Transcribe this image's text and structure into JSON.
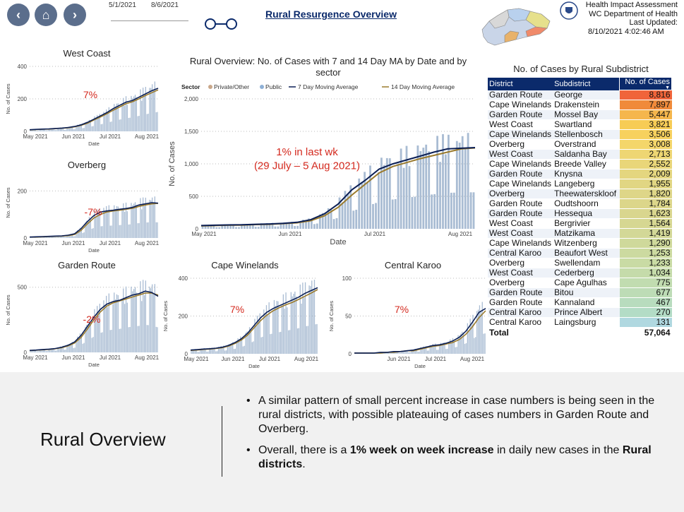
{
  "nav": {
    "back_icon": "‹",
    "home_icon": "⌂",
    "forward_icon": "›"
  },
  "date_filter": {
    "start": "5/1/2021",
    "end": "8/6/2021"
  },
  "main_title": "Rural Resurgence Overview",
  "header": {
    "org_line1": "Health Impact Assessment",
    "org_line2": "WC Department of Health",
    "org_line3": "Last Updated:",
    "updated": "8/10/2021 4:02:46 AM"
  },
  "table": {
    "title": "No. of Cases by Rural Subdistrict",
    "columns": [
      "District",
      "Subdistrict",
      "No. of Cases"
    ],
    "rows": [
      [
        "Garden Route",
        "George",
        "8,816"
      ],
      [
        "Cape Winelands",
        "Drakenstein",
        "7,897"
      ],
      [
        "Garden Route",
        "Mossel Bay",
        "5,447"
      ],
      [
        "West Coast",
        "Swartland",
        "3,821"
      ],
      [
        "Cape Winelands",
        "Stellenbosch",
        "3,506"
      ],
      [
        "Overberg",
        "Overstrand",
        "3,008"
      ],
      [
        "West Coast",
        "Saldanha Bay",
        "2,713"
      ],
      [
        "Cape Winelands",
        "Breede Valley",
        "2,552"
      ],
      [
        "Garden Route",
        "Knysna",
        "2,009"
      ],
      [
        "Cape Winelands",
        "Langeberg",
        "1,955"
      ],
      [
        "Overberg",
        "Theewaterskloof",
        "1,820"
      ],
      [
        "Garden Route",
        "Oudtshoorn",
        "1,784"
      ],
      [
        "Garden Route",
        "Hessequa",
        "1,623"
      ],
      [
        "West Coast",
        "Bergrivier",
        "1,564"
      ],
      [
        "West Coast",
        "Matzikama",
        "1,419"
      ],
      [
        "Cape Winelands",
        "Witzenberg",
        "1,290"
      ],
      [
        "Central Karoo",
        "Beaufort West",
        "1,253"
      ],
      [
        "Overberg",
        "Swellendam",
        "1,233"
      ],
      [
        "West Coast",
        "Cederberg",
        "1,034"
      ],
      [
        "Overberg",
        "Cape Agulhas",
        "775"
      ],
      [
        "Garden Route",
        "Bitou",
        "677"
      ],
      [
        "Garden Route",
        "Kannaland",
        "467"
      ],
      [
        "Central Karoo",
        "Prince Albert",
        "270"
      ],
      [
        "Central Karoo",
        "Laingsburg",
        "131"
      ]
    ],
    "row_colors": [
      "#f0643a",
      "#f08a3a",
      "#f5b64c",
      "#f7cc55",
      "#f7d15e",
      "#f4d66a",
      "#eed673",
      "#e9d679",
      "#e4d67f",
      "#e1d683",
      "#ded688",
      "#dcd68a",
      "#d9d68e",
      "#d6d792",
      "#d3d897",
      "#cfd99b",
      "#ccdaa0",
      "#c9dba4",
      "#c5dbaa",
      "#c1dcb0",
      "#bddcb6",
      "#b8dcbe",
      "#b3dcc6",
      "#b0d8e0"
    ],
    "total_label": "Total",
    "total_value": "57,064"
  },
  "bottom": {
    "title": "Rural Overview",
    "bullet1": "A similar pattern of small percent increase in case numbers is being seen in the rural districts, with possible plateauing of cases numbers in Garden Route and Overberg.",
    "bullet2_pre": "Overall, there is a ",
    "bullet2_bold": "1% week on week increase",
    "bullet2_mid": " in daily new cases in the ",
    "bullet2_bold2": "Rural districts",
    "bullet2_end": "."
  },
  "chart_data": [
    {
      "type": "bar",
      "id": "main",
      "title": "Rural Overview: No. of Cases with 7 and 14 Day MA by Date and by sector",
      "xlabel": "Date",
      "ylabel": "No. of Cases",
      "ylim": [
        0,
        2000
      ],
      "yticks": [
        "0",
        "500",
        "1,000",
        "1,500",
        "2,000"
      ],
      "xticks": [
        "May 2021",
        "Jun 2021",
        "Jul 2021",
        "Aug 2021"
      ],
      "legend_title": "Sector",
      "legend": [
        "Private/Other",
        "Public",
        "7 Day Moving Average",
        "14 Day Moving Average"
      ],
      "annotation": "1% in last wk\n(29 July – 5 Aug 2021)",
      "ma7": [
        50,
        55,
        60,
        62,
        70,
        75,
        85,
        100,
        140,
        230,
        380,
        600,
        750,
        920,
        1000,
        1060,
        1120,
        1180,
        1230,
        1240,
        1250
      ],
      "ma14": [
        45,
        50,
        55,
        58,
        65,
        70,
        80,
        92,
        125,
        200,
        330,
        520,
        690,
        860,
        960,
        1020,
        1080,
        1130,
        1180,
        1230,
        1245
      ]
    },
    {
      "type": "bar",
      "id": "west_coast",
      "title": "West Coast",
      "xlabel": "Date",
      "ylabel": "No. of Cases",
      "ylim": [
        0,
        400
      ],
      "yticks": [
        "0",
        "200",
        "400"
      ],
      "xticks": [
        "May 2021",
        "Jun 2021",
        "Jul 2021",
        "Aug 2021"
      ],
      "annotation": "7%",
      "ma7": [
        10,
        12,
        14,
        15,
        18,
        20,
        24,
        30,
        40,
        55,
        75,
        95,
        115,
        140,
        160,
        180,
        190,
        210,
        230,
        250,
        265
      ],
      "ma14": [
        9,
        11,
        13,
        14,
        17,
        19,
        22,
        28,
        37,
        50,
        70,
        88,
        108,
        130,
        150,
        170,
        182,
        200,
        220,
        238,
        255
      ]
    },
    {
      "type": "bar",
      "id": "overberg",
      "title": "Overberg",
      "xlabel": "Date",
      "ylabel": "No. of Cases",
      "ylim": [
        0,
        300
      ],
      "yticks": [
        "0",
        "200"
      ],
      "xticks": [
        "May 2021",
        "Jun 2021",
        "Jul 2021",
        "Aug 2021"
      ],
      "annotation": "-7%",
      "ma7": [
        4,
        5,
        6,
        7,
        8,
        9,
        12,
        18,
        40,
        70,
        95,
        110,
        115,
        118,
        122,
        125,
        130,
        140,
        145,
        150,
        148
      ],
      "ma14": [
        4,
        4,
        5,
        6,
        7,
        8,
        10,
        15,
        32,
        60,
        85,
        100,
        110,
        115,
        118,
        122,
        126,
        134,
        140,
        145,
        147
      ]
    },
    {
      "type": "bar",
      "id": "garden_route",
      "title": "Garden Route",
      "xlabel": "Date",
      "ylabel": "No. of Cases",
      "ylim": [
        0,
        650
      ],
      "yticks": [
        "0",
        "500"
      ],
      "xticks": [
        "May 2021",
        "Jun 2021",
        "Jul 2021",
        "Aug 2021"
      ],
      "annotation": "-2%",
      "ma7": [
        15,
        18,
        22,
        25,
        30,
        40,
        55,
        80,
        130,
        200,
        270,
        330,
        370,
        390,
        400,
        420,
        440,
        450,
        470,
        460,
        430
      ],
      "ma14": [
        14,
        16,
        20,
        23,
        28,
        36,
        50,
        72,
        115,
        180,
        250,
        310,
        355,
        380,
        395,
        410,
        425,
        440,
        455,
        455,
        440
      ]
    },
    {
      "type": "bar",
      "id": "cape_winelands",
      "title": "Cape Winelands",
      "xlabel": "Date",
      "ylabel": "No. of Cases",
      "ylim": [
        0,
        400
      ],
      "yticks": [
        "0",
        "200",
        "400"
      ],
      "xticks": [
        "May 2021",
        "Jun 2021",
        "Jul 2021",
        "Aug 2021"
      ],
      "annotation": "7%",
      "ma7": [
        20,
        22,
        25,
        27,
        30,
        35,
        45,
        60,
        80,
        110,
        150,
        190,
        220,
        240,
        255,
        270,
        285,
        300,
        320,
        335,
        350
      ],
      "ma14": [
        18,
        20,
        23,
        25,
        28,
        32,
        41,
        55,
        73,
        100,
        138,
        175,
        205,
        228,
        245,
        260,
        272,
        288,
        305,
        322,
        340
      ]
    },
    {
      "type": "bar",
      "id": "central_karoo",
      "title": "Central Karoo",
      "xlabel": "Date",
      "ylabel": "No. of Cases",
      "ylim": [
        0,
        100
      ],
      "yticks": [
        "0",
        "50",
        "100"
      ],
      "xticks": [
        "Jun 2021",
        "Jul 2021",
        "Aug 2021"
      ],
      "annotation": "7%",
      "ma7": [
        1,
        1,
        1,
        1,
        2,
        2,
        3,
        3,
        4,
        5,
        7,
        9,
        11,
        12,
        14,
        17,
        22,
        30,
        42,
        55,
        60
      ],
      "ma14": [
        1,
        1,
        1,
        1,
        1,
        2,
        2,
        3,
        4,
        4,
        6,
        8,
        10,
        11,
        13,
        15,
        19,
        26,
        36,
        48,
        57
      ]
    }
  ]
}
